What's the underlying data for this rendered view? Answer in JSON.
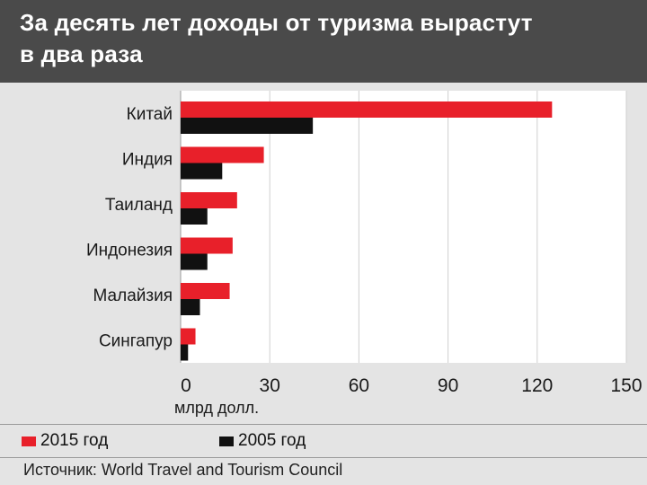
{
  "header": {
    "title_line1": "За десять лет доходы от туризма вырастут",
    "title_line2": "в два раза"
  },
  "chart_data": {
    "type": "bar",
    "orientation": "horizontal",
    "categories": [
      "Китай",
      "Индия",
      "Таиланд",
      "Индонезия",
      "Малайзия",
      "Сингапур"
    ],
    "series": [
      {
        "name": "2015 год",
        "color": "#e8202a",
        "values": [
          125,
          28,
          19,
          17.5,
          16.5,
          5
        ]
      },
      {
        "name": "2005 год",
        "color": "#111111",
        "values": [
          44.5,
          14,
          9,
          9,
          6.5,
          2.5
        ]
      }
    ],
    "xlim": [
      0,
      150
    ],
    "xticks": [
      0,
      30,
      60,
      90,
      120,
      150
    ],
    "xlabel": "млрд долл.",
    "grid": true,
    "legend_placement": "bottom"
  },
  "source": "Источник: World Travel and Tourism Council"
}
